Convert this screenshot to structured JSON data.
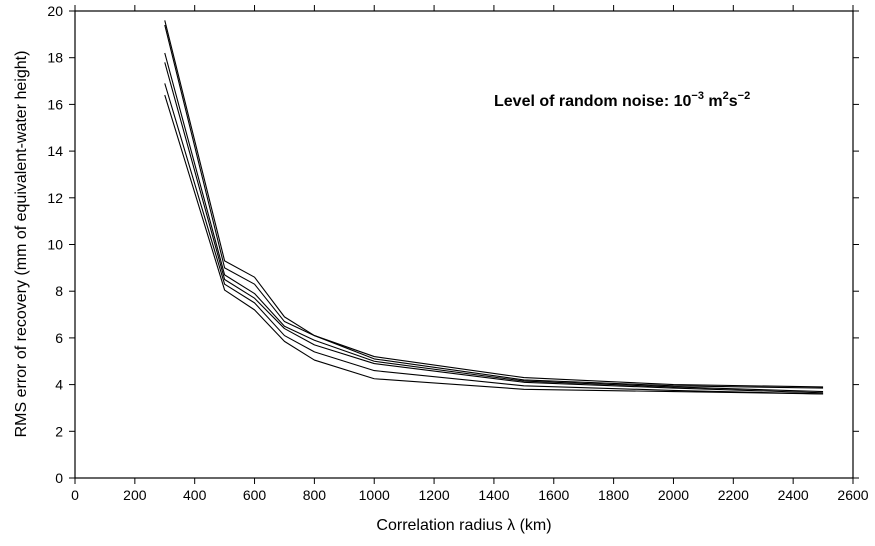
{
  "chart_data": {
    "type": "line",
    "xlabel": "Correlation radius λ (km)",
    "ylabel": "RMS error of recovery (mm of equivalent-water height)",
    "xlim": [
      0,
      2600
    ],
    "ylim": [
      0,
      20
    ],
    "xticks": [
      0,
      200,
      400,
      600,
      800,
      1000,
      1200,
      1400,
      1600,
      1800,
      2000,
      2200,
      2400,
      2600
    ],
    "yticks": [
      0,
      2,
      4,
      6,
      8,
      10,
      12,
      14,
      16,
      18,
      20
    ],
    "grid": false,
    "annotation": {
      "base": "Level of random noise: 10",
      "exp1": "−3",
      "mid": " m",
      "exp2": "2",
      "mid2": "s",
      "exp3": "−2"
    },
    "x": [
      300,
      500,
      600,
      700,
      800,
      1000,
      1500,
      2000,
      2500
    ],
    "series": [
      {
        "values": [
          19.6,
          9.3,
          8.6,
          6.9,
          6.1,
          5.2,
          4.3,
          4.0,
          3.9
        ]
      },
      {
        "values": [
          19.4,
          9.0,
          8.3,
          6.7,
          6.1,
          5.1,
          4.2,
          3.95,
          3.85
        ]
      },
      {
        "values": [
          18.2,
          8.7,
          7.9,
          6.5,
          5.9,
          5.0,
          4.15,
          3.9,
          3.7
        ]
      },
      {
        "values": [
          17.8,
          8.5,
          7.7,
          6.4,
          5.7,
          4.9,
          4.1,
          3.85,
          3.65
        ]
      },
      {
        "values": [
          16.9,
          8.3,
          7.5,
          6.1,
          5.4,
          4.6,
          3.95,
          3.75,
          3.6
        ]
      },
      {
        "values": [
          16.4,
          8.05,
          7.2,
          5.85,
          5.05,
          4.25,
          3.8,
          3.7,
          3.6
        ]
      }
    ]
  }
}
